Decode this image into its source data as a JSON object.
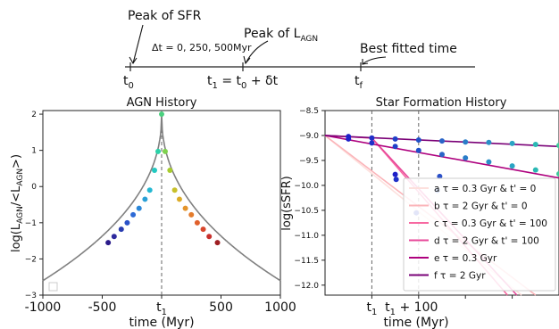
{
  "timeline": {
    "peak_sfr": "Peak of SFR",
    "delta_t": "Δt = 0, 250, 500Myr",
    "peak_agn": "Peak of L",
    "peak_agn_sub": "AGN",
    "best_fit": "Best fitted time",
    "t0": "t",
    "t0_sub": "0",
    "t1_formula_a": "t",
    "t1_formula_a_sub": "1",
    "t1_formula_b": " = t",
    "t1_formula_b_sub": "0",
    "t1_formula_c": " + δt",
    "tf": "t",
    "tf_sub": "f"
  },
  "chart_data": [
    {
      "type": "line",
      "title": "AGN History",
      "xlabel": "time (Myr)",
      "ylabel_parts": [
        "log(L",
        "AGN",
        "/<L",
        "AGN",
        ">)"
      ],
      "xlim": [
        -1000,
        1000
      ],
      "ylim": [
        -3,
        2.1
      ],
      "xticks": [
        -1000,
        -500,
        0,
        500,
        1000
      ],
      "xtick_labels": [
        "-1000",
        "-500",
        "t",
        "500",
        "1000"
      ],
      "xtick_sub": [
        "",
        "",
        "1",
        "",
        ""
      ],
      "yticks": [
        -3,
        -2,
        -1,
        0,
        1,
        2
      ],
      "ytick_labels": [
        "−3",
        "−2",
        "−1",
        "0",
        "1",
        "2"
      ],
      "curve_color": "#808080",
      "vline_x": 0,
      "points": [
        {
          "x": -450,
          "y": -1.55,
          "c": "#2a1b8a"
        },
        {
          "x": -400,
          "y": -1.38,
          "c": "#2e2a9e"
        },
        {
          "x": -340,
          "y": -1.18,
          "c": "#283cb0"
        },
        {
          "x": -290,
          "y": -1.0,
          "c": "#2a52c8"
        },
        {
          "x": -240,
          "y": -0.78,
          "c": "#2d6ad6"
        },
        {
          "x": -190,
          "y": -0.6,
          "c": "#2a86d8"
        },
        {
          "x": -140,
          "y": -0.35,
          "c": "#2aa0d6"
        },
        {
          "x": -100,
          "y": -0.1,
          "c": "#24b8d2"
        },
        {
          "x": -60,
          "y": 0.45,
          "c": "#22c8c0"
        },
        {
          "x": -30,
          "y": 0.97,
          "c": "#2ad2a8"
        },
        {
          "x": 0,
          "y": 2.0,
          "c": "#4ad07e"
        },
        {
          "x": 30,
          "y": 0.97,
          "c": "#7ed24e"
        },
        {
          "x": 70,
          "y": 0.45,
          "c": "#a8cc2e"
        },
        {
          "x": 110,
          "y": -0.1,
          "c": "#c8c02a"
        },
        {
          "x": 150,
          "y": -0.35,
          "c": "#dcac28"
        },
        {
          "x": 200,
          "y": -0.6,
          "c": "#e4942a"
        },
        {
          "x": 250,
          "y": -0.78,
          "c": "#e47c2c"
        },
        {
          "x": 300,
          "y": -1.0,
          "c": "#e0602c"
        },
        {
          "x": 350,
          "y": -1.18,
          "c": "#d8472c"
        },
        {
          "x": 400,
          "y": -1.38,
          "c": "#c8302c"
        },
        {
          "x": 470,
          "y": -1.55,
          "c": "#9e1e22"
        }
      ]
    },
    {
      "type": "line",
      "title": "Star Formation History",
      "xlabel": "time (Myr)",
      "ylabel": "log(sSFR)",
      "xlim": [
        0,
        500
      ],
      "ylim": [
        -12.2,
        -8.5
      ],
      "xticks": [
        100,
        200
      ],
      "xtick_labels": [
        "t",
        "t"
      ],
      "xtick_sub": [
        "1",
        "1"
      ],
      "xtick_suffix": [
        "",
        " + 100"
      ],
      "yticks": [
        -12.0,
        -11.5,
        -11.0,
        -10.5,
        -10.0,
        -9.5,
        -9.0,
        -8.5
      ],
      "ytick_labels": [
        "−12.0",
        "−11.5",
        "−11.0",
        "−10.5",
        "−10.0",
        "−9.5",
        "−9.0",
        "−8.5"
      ],
      "vlines": [
        100,
        200
      ],
      "series": [
        {
          "name": "a τ = 0.3 Gyr & t' = 0",
          "color": "#fde0dd",
          "x": [
            0,
            500
          ],
          "y": [
            -9.0,
            -12.2
          ]
        },
        {
          "name": "b τ = 2 Gyr & t' = 0",
          "color": "#fbb4b9",
          "x": [
            0,
            500
          ],
          "y": [
            -9.0,
            -12.2
          ]
        },
        {
          "name": "c τ = 0.3 Gyr & t' = 100",
          "color": "#f768a1",
          "x": [
            0,
            500
          ],
          "y": [
            -9.0,
            -12.2
          ]
        },
        {
          "name": "d τ = 2 Gyr & t' = 100",
          "color": "#e7489a",
          "x": [
            0,
            500
          ],
          "y": [
            -9.0,
            -12.2
          ]
        },
        {
          "name": "e τ = 0.3 Gyr",
          "color": "#ae017e",
          "x": [
            0,
            500
          ],
          "y": [
            -9.0,
            -9.85
          ]
        },
        {
          "name": "f τ = 2 Gyr",
          "color": "#7a0177",
          "x": [
            0,
            500
          ],
          "y": [
            -9.0,
            -9.22
          ]
        }
      ],
      "points": [
        {
          "x": 50,
          "y": -9.02,
          "c": "#2020c8"
        },
        {
          "x": 100,
          "y": -9.05,
          "c": "#2030c8"
        },
        {
          "x": 150,
          "y": -9.07,
          "c": "#2040c8"
        },
        {
          "x": 200,
          "y": -9.09,
          "c": "#2050c8"
        },
        {
          "x": 250,
          "y": -9.11,
          "c": "#2a64c8"
        },
        {
          "x": 300,
          "y": -9.13,
          "c": "#2a7cc8"
        },
        {
          "x": 350,
          "y": -9.14,
          "c": "#2a8ec8"
        },
        {
          "x": 400,
          "y": -9.16,
          "c": "#2aa4c4"
        },
        {
          "x": 450,
          "y": -9.18,
          "c": "#2ab8b4"
        },
        {
          "x": 500,
          "y": -9.2,
          "c": "#3cc89a"
        },
        {
          "x": 50,
          "y": -9.07,
          "c": "#2020c8"
        },
        {
          "x": 100,
          "y": -9.15,
          "c": "#2030c8"
        },
        {
          "x": 150,
          "y": -9.22,
          "c": "#2040c8"
        },
        {
          "x": 200,
          "y": -9.3,
          "c": "#2050c8"
        },
        {
          "x": 250,
          "y": -9.38,
          "c": "#2a64c8"
        },
        {
          "x": 300,
          "y": -9.45,
          "c": "#2a7cc8"
        },
        {
          "x": 350,
          "y": -9.53,
          "c": "#2a8ec8"
        },
        {
          "x": 400,
          "y": -9.61,
          "c": "#2aa4c4"
        },
        {
          "x": 450,
          "y": -9.69,
          "c": "#2ab8b4"
        },
        {
          "x": 500,
          "y": -9.77,
          "c": "#3cc89a"
        },
        {
          "x": 150,
          "y": -9.78,
          "c": "#2020c8"
        },
        {
          "x": 152,
          "y": -9.88,
          "c": "#2030c8"
        },
        {
          "x": 245,
          "y": -9.82,
          "c": "#2a50c8"
        },
        {
          "x": 240,
          "y": -10.1,
          "c": "#2a60c8"
        },
        {
          "x": 195,
          "y": -10.55,
          "c": "#4050d0"
        }
      ]
    }
  ]
}
